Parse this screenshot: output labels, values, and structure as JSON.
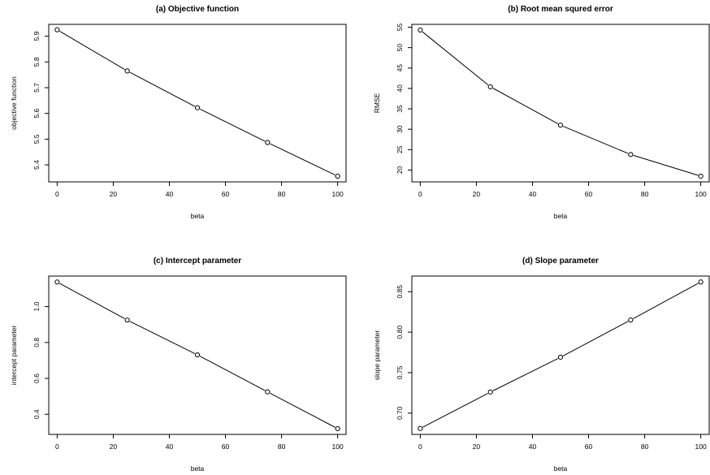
{
  "chart_data": [
    {
      "type": "line",
      "title": "(a) Objective function",
      "xlabel": "beta",
      "ylabel": "objective function",
      "x": [
        0,
        25,
        50,
        75,
        100
      ],
      "series": [
        {
          "values": [
            5.925,
            5.765,
            5.622,
            5.487,
            5.356
          ]
        }
      ],
      "xlim": [
        -3,
        103
      ],
      "ylim": [
        5.334,
        5.946
      ],
      "xticks": [
        0,
        20,
        40,
        60,
        80,
        100
      ],
      "yticks": [
        5.4,
        5.5,
        5.6,
        5.7,
        5.8,
        5.9
      ],
      "ytick_labels": [
        "5.4",
        "5.5",
        "5.6",
        "5.7",
        "5.8",
        "5.9"
      ],
      "grid": false
    },
    {
      "type": "line",
      "title": "(b) Root mean squred error",
      "xlabel": "beta",
      "ylabel": "RMSE",
      "x": [
        0,
        25,
        50,
        75,
        100
      ],
      "series": [
        {
          "values": [
            54.3,
            40.4,
            31.0,
            23.8,
            18.5
          ]
        }
      ],
      "xlim": [
        -3,
        103
      ],
      "ylim": [
        17.1,
        55.7
      ],
      "xticks": [
        0,
        20,
        40,
        60,
        80,
        100
      ],
      "yticks": [
        20,
        25,
        30,
        35,
        40,
        45,
        50,
        55
      ],
      "ytick_labels": [
        "20",
        "25",
        "30",
        "35",
        "40",
        "45",
        "50",
        "55"
      ],
      "grid": false
    },
    {
      "type": "line",
      "title": "(c) Intercept parameter",
      "xlabel": "beta",
      "ylabel": "intercept parameter",
      "x": [
        0,
        25,
        50,
        75,
        100
      ],
      "series": [
        {
          "values": [
            1.137,
            0.925,
            0.731,
            0.525,
            0.32
          ]
        }
      ],
      "xlim": [
        -3,
        103
      ],
      "ylim": [
        0.288,
        1.17
      ],
      "xticks": [
        0,
        20,
        40,
        60,
        80,
        100
      ],
      "yticks": [
        0.4,
        0.6,
        0.8,
        1.0
      ],
      "ytick_labels": [
        "0.4",
        "0.6",
        "0.8",
        "1.0"
      ],
      "grid": false
    },
    {
      "type": "line",
      "title": "(d) Slope parameter",
      "xlabel": "beta",
      "ylabel": "slope parameter",
      "x": [
        0,
        25,
        50,
        75,
        100
      ],
      "series": [
        {
          "values": [
            0.681,
            0.726,
            0.769,
            0.815,
            0.862
          ]
        }
      ],
      "xlim": [
        -3,
        103
      ],
      "ylim": [
        0.6737,
        0.8693
      ],
      "xticks": [
        0,
        20,
        40,
        60,
        80,
        100
      ],
      "yticks": [
        0.7,
        0.75,
        0.8,
        0.85
      ],
      "ytick_labels": [
        "0.70",
        "0.75",
        "0.80",
        "0.85"
      ],
      "grid": false
    }
  ]
}
